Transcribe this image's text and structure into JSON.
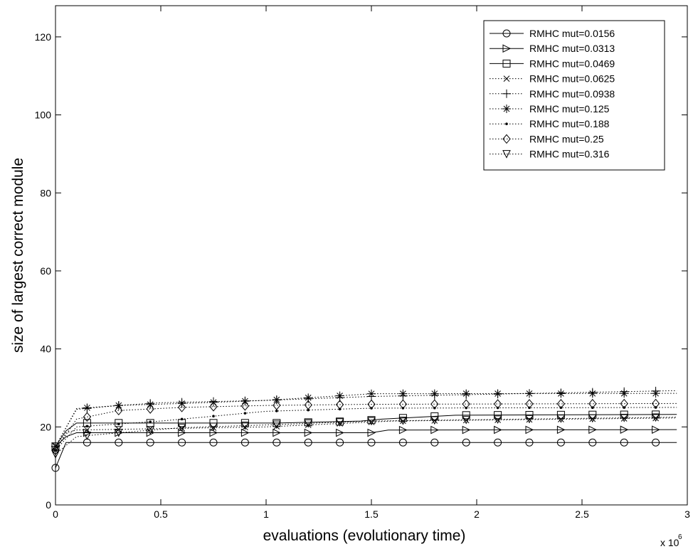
{
  "chart_data": {
    "type": "line",
    "xlabel": "evaluations (evolutionary time)",
    "ylabel": "size of largest correct module",
    "x_multiplier_label": "x 10",
    "x_multiplier_exponent": "6",
    "xlim": [
      0,
      3
    ],
    "ylim": [
      0,
      128
    ],
    "xticks": [
      0,
      0.5,
      1,
      1.5,
      2,
      2.5,
      3
    ],
    "xtick_labels": [
      "0",
      "0.5",
      "1",
      "1.5",
      "2",
      "2.5",
      "3"
    ],
    "yticks": [
      0,
      20,
      40,
      60,
      80,
      100,
      120
    ],
    "ytick_labels": [
      "0",
      "20",
      "40",
      "60",
      "80",
      "100",
      "120"
    ],
    "grid": false,
    "legend_position": "top-right",
    "marker_x": [
      0.15,
      0.3,
      0.45,
      0.6,
      0.75,
      0.9,
      1.05,
      1.2,
      1.35,
      1.5,
      1.65,
      1.8,
      1.95,
      2.1,
      2.25,
      2.4,
      2.55,
      2.7,
      2.85
    ],
    "series": [
      {
        "name": "RMHC mut=0.0156",
        "marker": "circle",
        "line": "solid",
        "x": [
          0,
          0.05,
          0.1,
          2.95
        ],
        "y": [
          9.5,
          16,
          16,
          16
        ]
      },
      {
        "name": "RMHC mut=0.0313",
        "marker": "triangle-right",
        "line": "solid",
        "x": [
          0,
          0.05,
          0.1,
          1.5,
          1.58,
          2.95
        ],
        "y": [
          15,
          17.5,
          18.5,
          18.5,
          19.2,
          19.3
        ]
      },
      {
        "name": "RMHC mut=0.0469",
        "marker": "square",
        "line": "solid",
        "x": [
          0,
          0.05,
          0.1,
          1.05,
          1.45,
          1.55,
          1.9,
          2.95
        ],
        "y": [
          15,
          19,
          21,
          21,
          21.5,
          22,
          23,
          23.2
        ]
      },
      {
        "name": "RMHC mut=0.0625",
        "marker": "x",
        "line": "dotted",
        "x": [
          0,
          0.05,
          0.1,
          1.0,
          1.6,
          2.95
        ],
        "y": [
          14,
          18.5,
          19.2,
          20,
          21.5,
          22.3
        ]
      },
      {
        "name": "RMHC mut=0.0938",
        "marker": "plus",
        "line": "dotted",
        "x": [
          0,
          0.1,
          0.3,
          0.5,
          1.0,
          1.5,
          2.95
        ],
        "y": [
          15,
          24.5,
          25.5,
          26.2,
          26.8,
          27.8,
          29.3
        ]
      },
      {
        "name": "RMHC mut=0.125",
        "marker": "asterisk",
        "line": "dotted",
        "x": [
          0,
          0.1,
          0.3,
          0.6,
          1.0,
          1.5,
          2.95
        ],
        "y": [
          15,
          24.7,
          25.5,
          26,
          26.8,
          28.5,
          28.6
        ]
      },
      {
        "name": "RMHC mut=0.188",
        "marker": "dot",
        "line": "dotted",
        "x": [
          0,
          0.1,
          0.5,
          1.0,
          1.5,
          2.95
        ],
        "y": [
          14,
          20,
          21.5,
          24,
          24.8,
          25
        ]
      },
      {
        "name": "RMHC mut=0.25",
        "marker": "diamond",
        "line": "dotted",
        "x": [
          0,
          0.1,
          0.3,
          0.6,
          1.0,
          1.5,
          2.95
        ],
        "y": [
          14,
          22,
          24.2,
          25,
          25.5,
          25.8,
          26
        ]
      },
      {
        "name": "RMHC mut=0.316",
        "marker": "triangle-down",
        "line": "dotted",
        "x": [
          0,
          0.1,
          0.3,
          0.6,
          1.0,
          1.5,
          2.95
        ],
        "y": [
          13,
          17.5,
          18.5,
          19.8,
          20.5,
          21.5,
          22.5
        ]
      }
    ]
  }
}
